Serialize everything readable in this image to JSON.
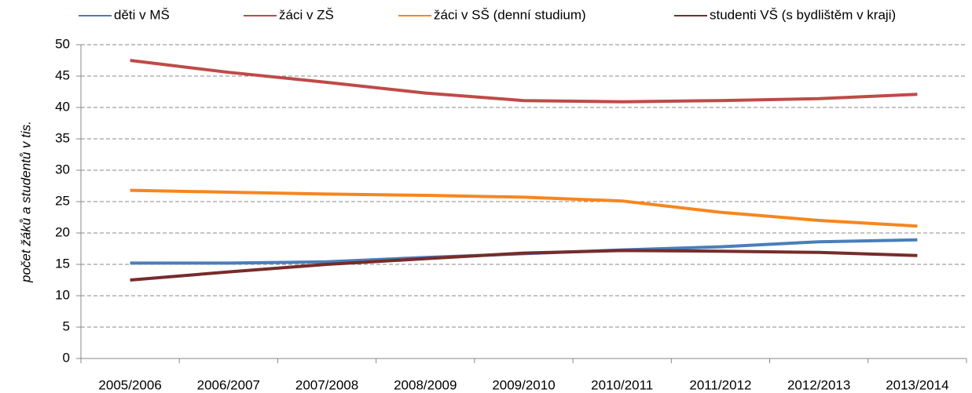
{
  "chart_data": {
    "type": "line",
    "y_label": "počet žáků a studentů v tis.",
    "categories": [
      "2005/2006",
      "2006/2007",
      "2007/2008",
      "2008/2009",
      "2009/2010",
      "2010/2011",
      "2011/2012",
      "2012/2013",
      "2013/2014"
    ],
    "series": [
      {
        "name": "děti v MŠ",
        "color": "#4a7ebb",
        "values": [
          15.2,
          15.2,
          15.4,
          16.1,
          16.7,
          17.3,
          17.8,
          18.6,
          18.9
        ]
      },
      {
        "name": "žáci v ZŠ",
        "color": "#be4b48",
        "values": [
          47.5,
          45.6,
          44.0,
          42.3,
          41.1,
          40.9,
          41.1,
          41.4,
          42.1
        ]
      },
      {
        "name": "žáci v SŠ (denní studium)",
        "color": "#f7861e",
        "values": [
          26.8,
          26.5,
          26.2,
          26.0,
          25.7,
          25.1,
          23.3,
          22.0,
          21.1
        ]
      },
      {
        "name": "studenti VŠ (s bydlištěm v kraji)",
        "color": "#772c2a",
        "values": [
          12.5,
          13.8,
          15.0,
          15.9,
          16.8,
          17.2,
          17.1,
          16.9,
          16.4
        ]
      }
    ],
    "ylim": [
      0,
      50
    ],
    "yticks": [
      0,
      5,
      10,
      15,
      20,
      25,
      30,
      35,
      40,
      45,
      50
    ],
    "grid": true,
    "legend": "top"
  }
}
